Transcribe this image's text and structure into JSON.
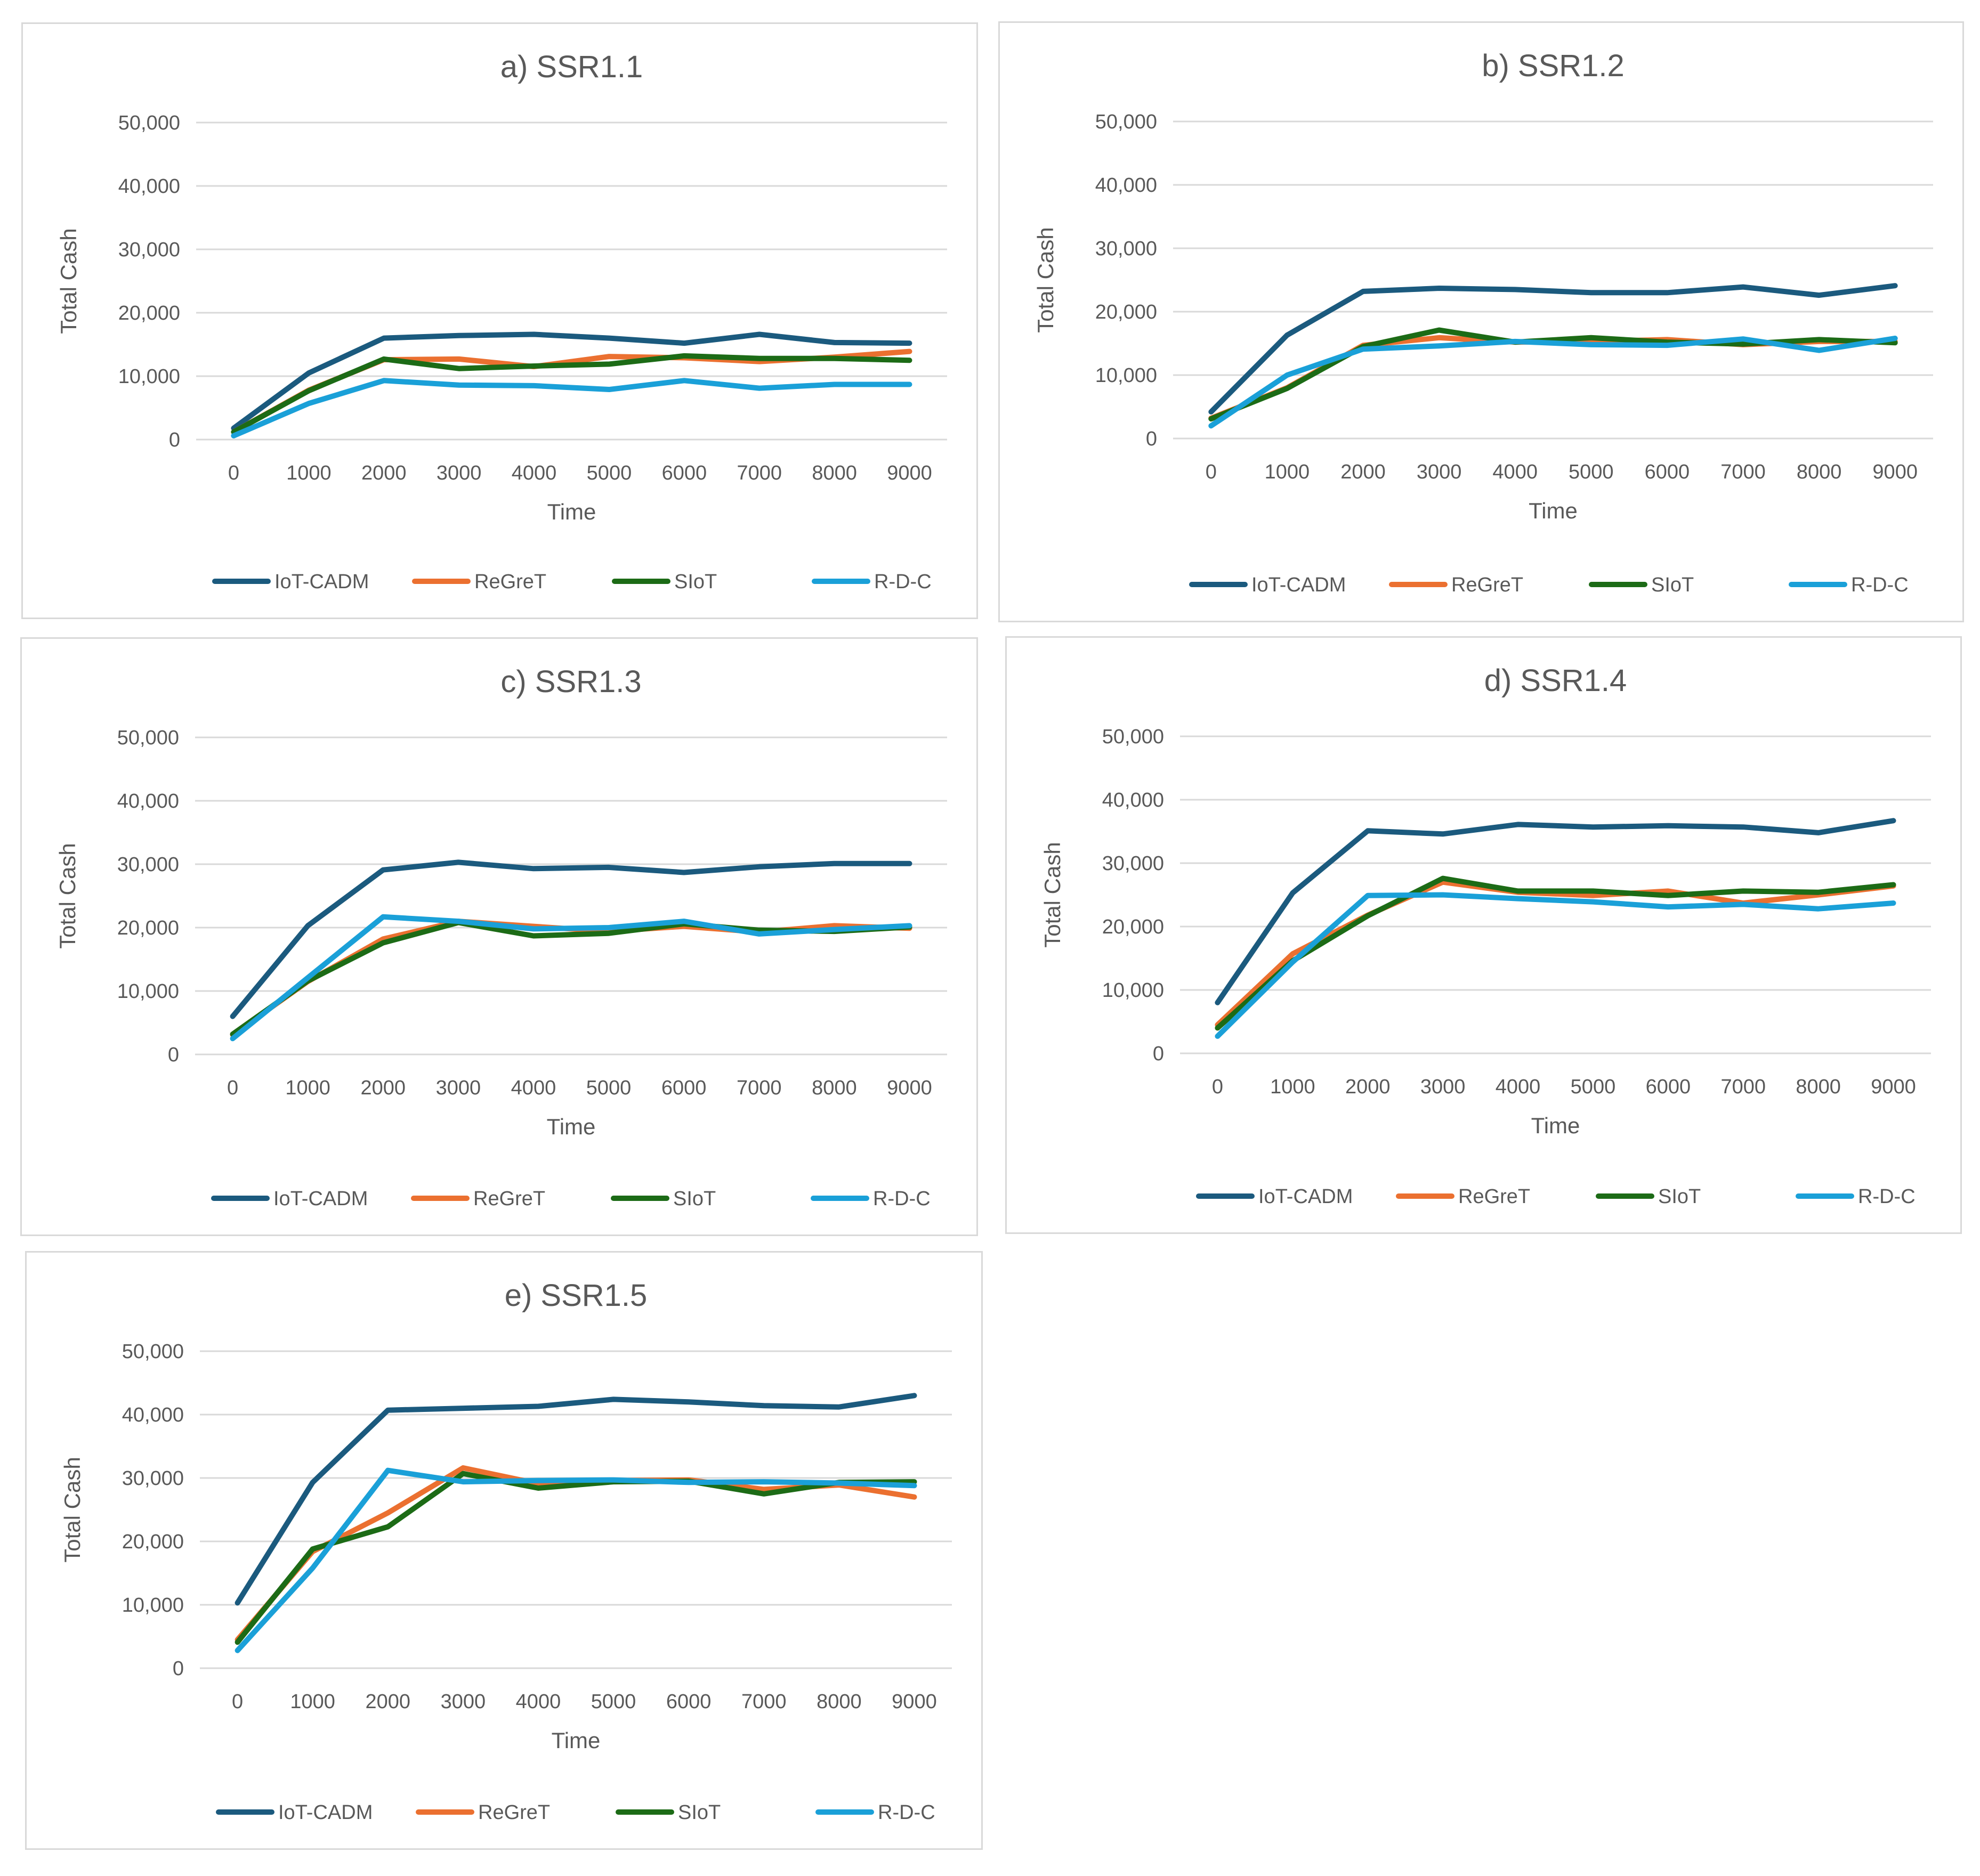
{
  "legend": {
    "series": [
      {
        "name": "IoT-CADM",
        "color": "#1b5a7e"
      },
      {
        "name": "ReGreT",
        "color": "#eb7030"
      },
      {
        "name": "SIoT",
        "color": "#1c6b16"
      },
      {
        "name": "R-D-C",
        "color": "#1aa0d8"
      }
    ]
  },
  "chart_data": [
    {
      "type": "line",
      "title": "a) SSR1.1",
      "xlabel": "Time",
      "ylabel": "Total Cash",
      "categories": [
        "0",
        "1000",
        "2000",
        "3000",
        "4000",
        "5000",
        "6000",
        "7000",
        "8000",
        "9000"
      ],
      "yticks": [
        "0",
        "10,000",
        "20,000",
        "30,000",
        "40,000",
        "50,000"
      ],
      "ylim": [
        0,
        50000
      ],
      "grid": true,
      "legend_position": "bottom",
      "series": [
        {
          "name": "IoT-CADM",
          "values": [
            1800,
            10500,
            16000,
            16400,
            16600,
            16000,
            15200,
            16600,
            15300,
            15200
          ]
        },
        {
          "name": "ReGreT",
          "values": [
            1200,
            7800,
            12600,
            12700,
            11500,
            13100,
            12900,
            12300,
            13000,
            13900
          ]
        },
        {
          "name": "SIoT",
          "values": [
            1200,
            7700,
            12700,
            11200,
            11600,
            11900,
            13200,
            12800,
            12800,
            12500
          ]
        },
        {
          "name": "R-D-C",
          "values": [
            600,
            5700,
            9300,
            8600,
            8500,
            7900,
            9300,
            8100,
            8700,
            8700
          ]
        }
      ]
    },
    {
      "type": "line",
      "title": "b) SSR1.2",
      "xlabel": "Time",
      "ylabel": "Total Cash",
      "categories": [
        "0",
        "1000",
        "2000",
        "3000",
        "4000",
        "5000",
        "6000",
        "7000",
        "8000",
        "9000"
      ],
      "yticks": [
        "0",
        "10,000",
        "20,000",
        "30,000",
        "40,000",
        "50,000"
      ],
      "ylim": [
        0,
        50000
      ],
      "grid": true,
      "legend_position": "bottom",
      "series": [
        {
          "name": "IoT-CADM",
          "values": [
            4200,
            16300,
            23200,
            23700,
            23500,
            23000,
            23000,
            23900,
            22600,
            24100
          ]
        },
        {
          "name": "ReGreT",
          "values": [
            3200,
            8000,
            14700,
            15900,
            15200,
            15300,
            15600,
            14800,
            15300,
            15300
          ]
        },
        {
          "name": "SIoT",
          "values": [
            3100,
            7900,
            14500,
            17100,
            15200,
            15900,
            15200,
            14900,
            15600,
            15100
          ]
        },
        {
          "name": "R-D-C",
          "values": [
            2000,
            10000,
            14100,
            14600,
            15300,
            14800,
            14700,
            15700,
            13900,
            15800
          ]
        }
      ]
    },
    {
      "type": "line",
      "title": "c) SSR1.3",
      "xlabel": "Time",
      "ylabel": "Total Cash",
      "categories": [
        "0",
        "1000",
        "2000",
        "3000",
        "4000",
        "5000",
        "6000",
        "7000",
        "8000",
        "9000"
      ],
      "yticks": [
        "0",
        "10,000",
        "20,000",
        "30,000",
        "40,000",
        "50,000"
      ],
      "ylim": [
        0,
        50000
      ],
      "grid": true,
      "legend_position": "bottom",
      "series": [
        {
          "name": "IoT-CADM",
          "values": [
            6000,
            20300,
            29100,
            30300,
            29300,
            29500,
            28700,
            29600,
            30100,
            30100
          ]
        },
        {
          "name": "ReGreT",
          "values": [
            3100,
            11500,
            18200,
            21000,
            20200,
            19400,
            20200,
            19300,
            20300,
            19900
          ]
        },
        {
          "name": "SIoT",
          "values": [
            3200,
            11600,
            17600,
            20800,
            18700,
            19100,
            20600,
            19600,
            19400,
            20100
          ]
        },
        {
          "name": "R-D-C",
          "values": [
            2500,
            12100,
            21700,
            21000,
            19800,
            20000,
            21000,
            19000,
            19700,
            20300
          ]
        }
      ]
    },
    {
      "type": "line",
      "title": "d) SSR1.4",
      "xlabel": "Time",
      "ylabel": "Total Cash",
      "categories": [
        "0",
        "1000",
        "2000",
        "3000",
        "4000",
        "5000",
        "6000",
        "7000",
        "8000",
        "9000"
      ],
      "yticks": [
        "0",
        "10,000",
        "20,000",
        "30,000",
        "40,000",
        "50,000"
      ],
      "ylim": [
        0,
        50000
      ],
      "grid": true,
      "legend_position": "bottom",
      "series": [
        {
          "name": "IoT-CADM",
          "values": [
            8000,
            25300,
            35100,
            34600,
            36100,
            35700,
            35900,
            35700,
            34800,
            36700
          ]
        },
        {
          "name": "ReGreT",
          "values": [
            4500,
            15700,
            21800,
            27000,
            25400,
            24900,
            25600,
            23700,
            25000,
            26400
          ]
        },
        {
          "name": "SIoT",
          "values": [
            4000,
            14600,
            21700,
            27600,
            25600,
            25600,
            24900,
            25600,
            25400,
            26600
          ]
        },
        {
          "name": "R-D-C",
          "values": [
            2700,
            14400,
            24900,
            25000,
            24400,
            23900,
            23100,
            23500,
            22800,
            23700
          ]
        }
      ]
    },
    {
      "type": "line",
      "title": "e) SSR1.5",
      "xlabel": "Time",
      "ylabel": "Total Cash",
      "categories": [
        "0",
        "1000",
        "2000",
        "3000",
        "4000",
        "5000",
        "6000",
        "7000",
        "8000",
        "9000"
      ],
      "yticks": [
        "0",
        "10,000",
        "20,000",
        "30,000",
        "40,000",
        "50,000"
      ],
      "ylim": [
        0,
        50000
      ],
      "grid": true,
      "legend_position": "bottom",
      "series": [
        {
          "name": "IoT-CADM",
          "values": [
            10300,
            29300,
            40700,
            41000,
            41300,
            42400,
            42000,
            41400,
            41200,
            43000
          ]
        },
        {
          "name": "ReGreT",
          "values": [
            4500,
            18400,
            24500,
            31600,
            29100,
            29600,
            29700,
            28200,
            28900,
            27000
          ]
        },
        {
          "name": "SIoT",
          "values": [
            4100,
            18800,
            22300,
            30700,
            28400,
            29400,
            29500,
            27500,
            29300,
            29400
          ]
        },
        {
          "name": "R-D-C",
          "values": [
            2800,
            15800,
            31200,
            29400,
            29600,
            29700,
            29300,
            29400,
            29200,
            28800
          ]
        }
      ]
    }
  ]
}
